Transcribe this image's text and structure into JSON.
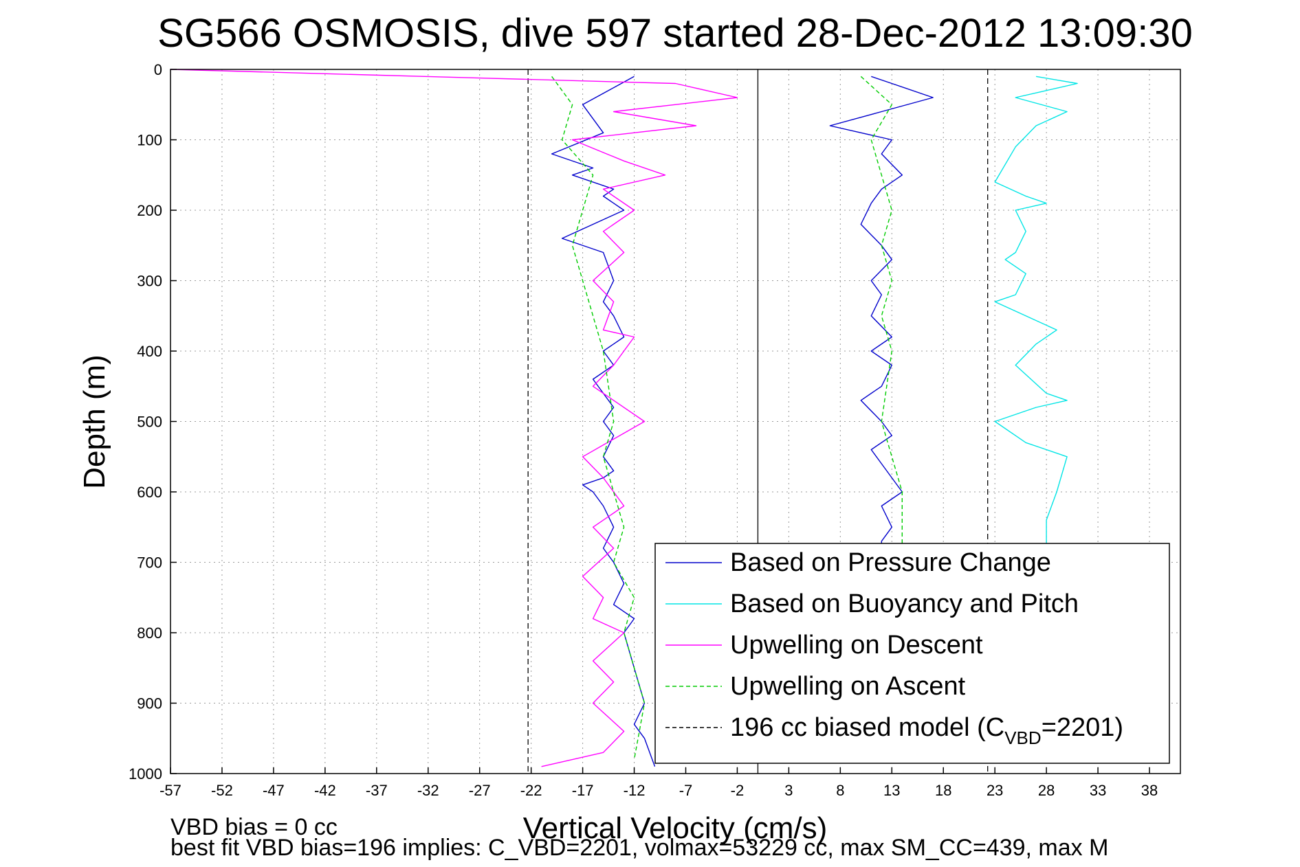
{
  "chart_data": {
    "type": "line",
    "title": "SG566 OSMOSIS, dive 597 started 28-Dec-2012 13:09:30",
    "xlabel": "Vertical Velocity (cm/s)",
    "ylabel": "Depth (m)",
    "xlim": [
      -57,
      41
    ],
    "ylim": [
      0,
      1000
    ],
    "y_reversed": true,
    "grid": true,
    "x_ticks": [
      -57,
      -52,
      -47,
      -42,
      -37,
      -32,
      -27,
      -22,
      -17,
      -12,
      -7,
      -2,
      3,
      8,
      13,
      18,
      23,
      28,
      33,
      38
    ],
    "x_tick_labels": [
      "-57",
      "-52",
      "-47",
      "-42",
      "-37",
      "-32",
      "-27",
      "-22",
      "-17",
      "-12",
      "-7",
      "-2",
      "3",
      "8",
      "13",
      "18",
      "23",
      "28",
      "33",
      "38"
    ],
    "y_ticks": [
      0,
      100,
      200,
      300,
      400,
      500,
      600,
      700,
      800,
      900,
      1000
    ],
    "y_tick_labels": [
      "0",
      "100",
      "200",
      "300",
      "400",
      "500",
      "600",
      "700",
      "800",
      "900",
      "1000"
    ],
    "legend_position": "bottom-right",
    "series": [
      {
        "name": "Based on Pressure Change",
        "color": "#0000cc",
        "style": "solid",
        "x": [
          -12,
          -17,
          -15,
          -20,
          -16,
          -18,
          -14,
          -15,
          -13,
          -16,
          -19,
          -15,
          -14,
          -15,
          -14,
          -13,
          -15,
          -14,
          -16,
          -15,
          -14,
          -15,
          -14,
          -15,
          -14,
          -15,
          -17,
          -16,
          -15,
          -14,
          -15,
          -14,
          -13,
          -14,
          -12,
          -13,
          -12,
          -11,
          -12,
          -11,
          -10
        ],
        "y": [
          10,
          50,
          90,
          120,
          140,
          150,
          170,
          180,
          200,
          220,
          240,
          260,
          300,
          330,
          350,
          380,
          400,
          420,
          440,
          460,
          480,
          500,
          520,
          550,
          570,
          580,
          590,
          600,
          620,
          650,
          680,
          700,
          730,
          760,
          780,
          800,
          850,
          900,
          930,
          950,
          990
        ]
      },
      {
        "name": "Based on Pressure Change",
        "color": "#0000cc",
        "style": "solid",
        "x": [
          11,
          13,
          17,
          12,
          7,
          13,
          12,
          14,
          12,
          11,
          10,
          12,
          13,
          11,
          12,
          11,
          13,
          11,
          13,
          12,
          10,
          12,
          13,
          11,
          12,
          13,
          14,
          12,
          13,
          12,
          12
        ],
        "y": [
          10,
          20,
          40,
          60,
          80,
          100,
          120,
          150,
          170,
          190,
          220,
          250,
          270,
          300,
          320,
          350,
          380,
          400,
          420,
          450,
          470,
          500,
          520,
          540,
          560,
          580,
          600,
          620,
          650,
          670,
          680
        ]
      },
      {
        "name": "Based on Buoyancy and Pitch",
        "color": "#00e5e5",
        "style": "solid",
        "x": [
          27,
          31,
          25,
          30,
          27,
          25,
          23,
          26,
          28,
          25,
          26,
          25,
          24,
          26,
          25,
          23,
          26,
          29,
          27,
          25,
          28,
          30,
          27,
          23,
          26,
          28,
          30,
          29,
          28,
          28
        ],
        "y": [
          10,
          20,
          40,
          60,
          80,
          110,
          160,
          180,
          190,
          200,
          230,
          260,
          270,
          290,
          320,
          330,
          350,
          370,
          390,
          420,
          460,
          470,
          480,
          500,
          530,
          540,
          550,
          600,
          640,
          680
        ]
      },
      {
        "name": "Upwelling on Descent",
        "color": "#ff00ff",
        "style": "solid",
        "x": [
          -57,
          -8,
          -2,
          -14,
          -6,
          -18,
          -13,
          -9,
          -15,
          -12,
          -15,
          -13,
          -16,
          -14,
          -15,
          -12,
          -14,
          -16,
          -14,
          -11,
          -17,
          -15,
          -13,
          -16,
          -14,
          -17,
          -15,
          -16,
          -13,
          -16,
          -14,
          -16,
          -13,
          -15,
          -21
        ],
        "y": [
          0,
          20,
          40,
          60,
          80,
          100,
          130,
          150,
          170,
          200,
          230,
          260,
          300,
          330,
          370,
          380,
          420,
          450,
          470,
          500,
          550,
          580,
          620,
          650,
          680,
          720,
          750,
          780,
          800,
          840,
          870,
          900,
          940,
          970,
          990
        ]
      },
      {
        "name": "Upwelling on Ascent",
        "color": "#00cc00",
        "style": "dashed",
        "x": [
          -20,
          -18,
          -19,
          -16,
          -17,
          -18,
          -17,
          -16,
          -15,
          -14,
          -15,
          -14,
          -13,
          -14,
          -12,
          -13,
          -12,
          -11,
          -12
        ],
        "y": [
          10,
          50,
          100,
          150,
          200,
          250,
          300,
          350,
          400,
          500,
          550,
          600,
          650,
          700,
          750,
          800,
          850,
          900,
          980
        ]
      },
      {
        "name": "Upwelling on Ascent",
        "color": "#00cc00",
        "style": "dashed",
        "x": [
          10,
          13,
          11,
          12,
          13,
          12,
          13,
          12,
          13,
          12,
          14,
          14
        ],
        "y": [
          10,
          50,
          100,
          150,
          200,
          250,
          300,
          350,
          400,
          500,
          600,
          680
        ]
      }
    ],
    "reference_lines": [
      {
        "name": "196 cc biased model (C_VBD=2201)",
        "color": "#000000",
        "style": "dashed",
        "x": -22.3
      },
      {
        "name": "196 cc biased model (C_VBD=2201)",
        "color": "#000000",
        "style": "dashed",
        "x": 22.3
      },
      {
        "name": "",
        "color": "#000000",
        "style": "solid",
        "x": 0
      }
    ]
  },
  "legend": {
    "items": [
      {
        "label": "Based on Pressure Change",
        "color": "#0000cc",
        "style": "solid"
      },
      {
        "label": "Based on Buoyancy and Pitch",
        "color": "#00e5e5",
        "style": "solid"
      },
      {
        "label": "Upwelling on Descent",
        "color": "#ff00ff",
        "style": "solid"
      },
      {
        "label": "Upwelling on Ascent",
        "color": "#00cc00",
        "style": "dashed"
      }
    ],
    "model_label_pre": "196 cc biased model (C",
    "model_label_sub": "VBD",
    "model_label_post": "=2201)",
    "model_color": "#000000"
  },
  "footer": {
    "line1": "VBD bias = 0 cc",
    "line2": "best fit VBD bias=196 implies: C_VBD=2201, volmax=53229 cc, max SM_CC=439, max M"
  }
}
